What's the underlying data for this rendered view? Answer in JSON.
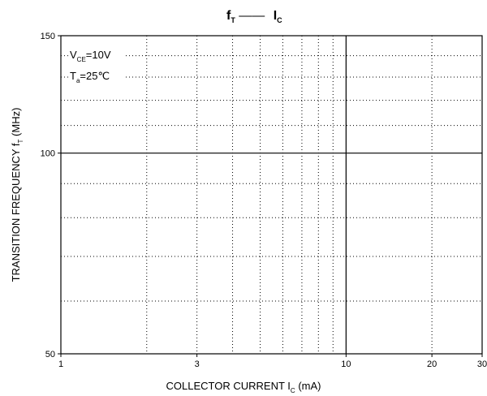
{
  "chart_data": {
    "type": "line",
    "title": {
      "left_symbol": "f",
      "left_subscript": "T",
      "separator": "——",
      "right_symbol": "I",
      "right_subscript": "C"
    },
    "xlabel": {
      "text": "COLLECTOR CURRENT",
      "symbol": "I",
      "subscript": "C",
      "unit": "(mA)"
    },
    "ylabel": {
      "text": "TRANSITION FREQUENCY",
      "symbol": "f",
      "subscript": "T",
      "unit": "(MHz)"
    },
    "x_scale": "log",
    "y_scale": "log",
    "xlim": [
      1,
      30
    ],
    "ylim": [
      50,
      150
    ],
    "x_tick_labels": [
      {
        "value": 1,
        "label": "1"
      },
      {
        "value": 3,
        "label": "3"
      },
      {
        "value": 10,
        "label": "10"
      },
      {
        "value": 20,
        "label": "20"
      },
      {
        "value": 30,
        "label": "30"
      }
    ],
    "y_tick_labels": [
      {
        "value": 50,
        "label": "50"
      },
      {
        "value": 100,
        "label": "100"
      },
      {
        "value": 150,
        "label": "150"
      }
    ],
    "x_minor_grid": [
      2,
      3,
      4,
      5,
      6,
      7,
      8,
      9,
      20
    ],
    "x_major_grid": [
      10
    ],
    "y_minor_grid": [
      60,
      70,
      80,
      90,
      110,
      120,
      130,
      140
    ],
    "y_major_grid": [
      100
    ],
    "conditions": [
      {
        "symbol": "V",
        "subscript": "CE",
        "value": "=10V"
      },
      {
        "symbol": "T",
        "subscript": "a",
        "value": "=25℃"
      }
    ],
    "series": [],
    "grid": true
  }
}
